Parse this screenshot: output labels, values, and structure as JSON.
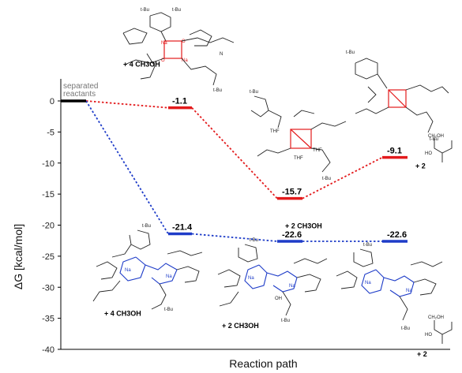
{
  "chart_data": {
    "type": "line",
    "xlabel": "Reaction path",
    "ylabel": "ΔG [kcal/mol]",
    "ylim": [
      -40,
      0
    ],
    "yticks": [
      0,
      -5,
      -10,
      -15,
      -20,
      -25,
      -30,
      -35,
      -40
    ],
    "start_label": "separated reactants",
    "start_value": 0,
    "series": [
      {
        "color": "#e31a1c",
        "line_style": "dotted",
        "points": [
          {
            "step": 1,
            "value": -1.1,
            "label": "-1.1",
            "note": "+ 4 CH3OH"
          },
          {
            "step": 2,
            "value": -15.7,
            "label": "-15.7",
            "note": "+ 2 CH3OH"
          },
          {
            "step": 3,
            "value": -9.1,
            "label": "-9.1",
            "note": "+ 2"
          }
        ]
      },
      {
        "color": "#1e3cc8",
        "line_style": "dotted",
        "points": [
          {
            "step": 1,
            "value": -21.4,
            "label": "-21.4",
            "note": "+ 4 CH3OH"
          },
          {
            "step": 2,
            "value": -22.6,
            "label": "-22.6",
            "note": "+ 2 CH3OH"
          },
          {
            "step": 3,
            "value": -22.6,
            "label": "-22.6",
            "note": "+ 2"
          }
        ]
      }
    ],
    "grid": false,
    "structure_labels": {
      "t_bu": "t-Bu",
      "na": "Na",
      "o": "O",
      "h": "H",
      "n": "N",
      "thf": "THF",
      "oh": "OH",
      "ch2oh": "CH₂OH",
      "ho": "HO"
    }
  }
}
